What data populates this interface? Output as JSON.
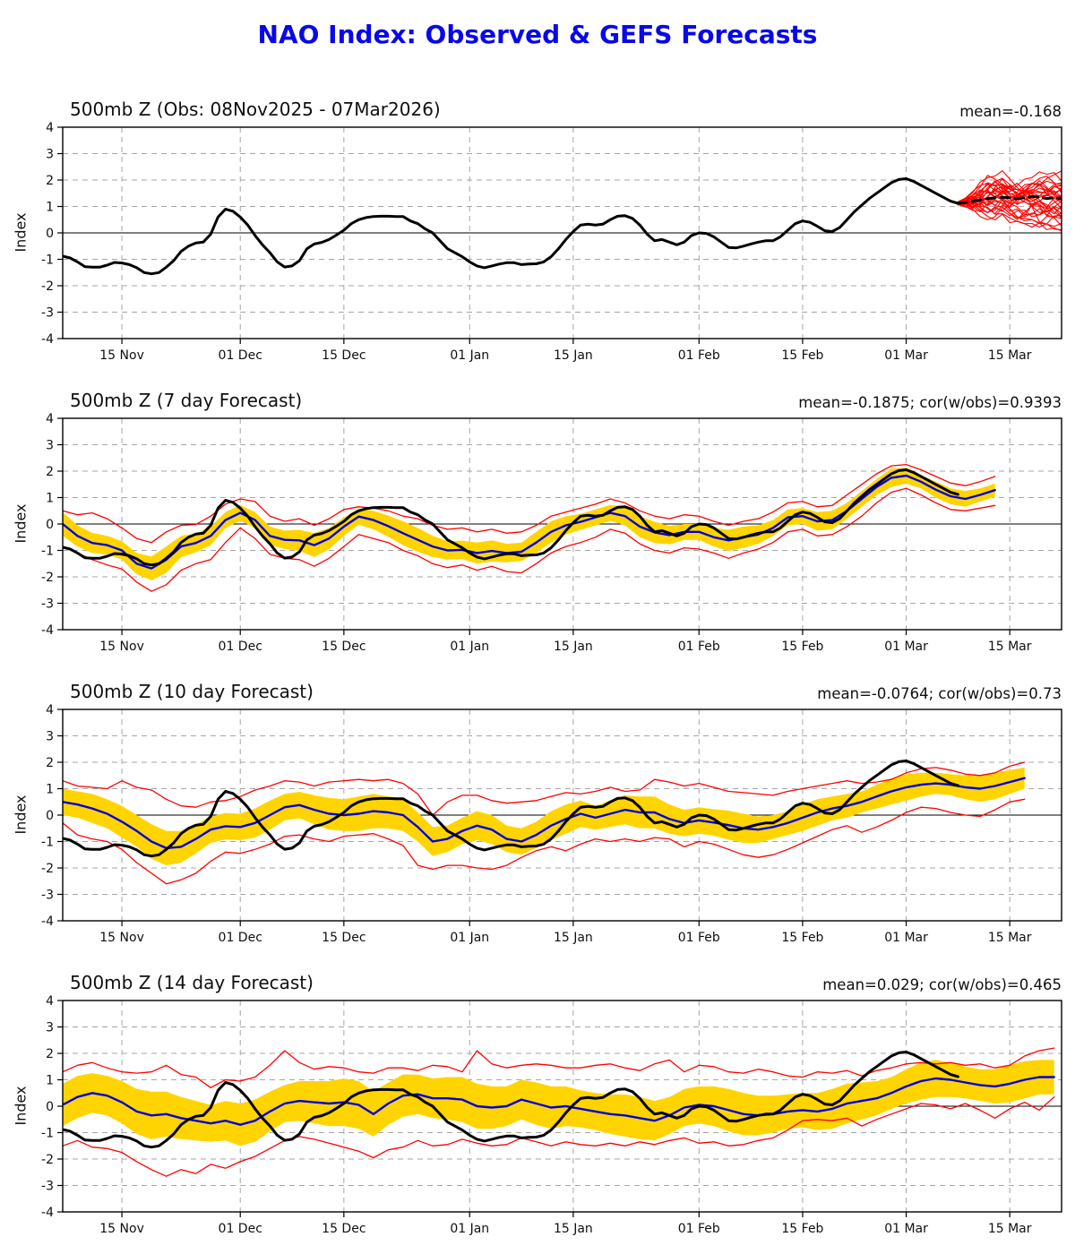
{
  "title": "NAO Index: Observed & GEFS Forecasts",
  "colors": {
    "title": "#0808e8",
    "observed": "#000000",
    "mean_line": "#0000dd",
    "envelope": "#ff0000",
    "band": "#ffd400",
    "grid": "#a6a6a6"
  },
  "axis": {
    "y_label": "Index",
    "y_min": -4,
    "y_max": 4,
    "y_ticks": [
      -4,
      -3,
      -2,
      -1,
      0,
      1,
      2,
      3,
      4
    ],
    "day_min": 0,
    "day_max": 135,
    "x_ticks": [
      {
        "day": 8,
        "label": "15 Nov"
      },
      {
        "day": 24,
        "label": "01 Dec"
      },
      {
        "day": 38,
        "label": "15 Dec"
      },
      {
        "day": 55,
        "label": "01 Jan"
      },
      {
        "day": 69,
        "label": "15 Jan"
      },
      {
        "day": 86,
        "label": "01 Feb"
      },
      {
        "day": 100,
        "label": "15 Feb"
      },
      {
        "day": 114,
        "label": "01 Mar"
      },
      {
        "day": 128,
        "label": "15 Mar"
      }
    ]
  },
  "chart_data": [
    {
      "type": "line",
      "title": "500mb Z (Obs: 08Nov2025 - 07Mar2026)",
      "stats": "mean=-0.168",
      "mean_value": -0.168,
      "observed": {
        "x_start": 0,
        "x_step": 1,
        "values": [
          -0.88,
          -0.95,
          -1.1,
          -1.28,
          -1.3,
          -1.3,
          -1.22,
          -1.12,
          -1.14,
          -1.2,
          -1.32,
          -1.5,
          -1.55,
          -1.5,
          -1.3,
          -1.05,
          -0.7,
          -0.5,
          -0.38,
          -0.35,
          -0.05,
          0.6,
          0.9,
          0.82,
          0.6,
          0.3,
          -0.1,
          -0.45,
          -0.75,
          -1.1,
          -1.29,
          -1.25,
          -1.05,
          -0.6,
          -0.42,
          -0.36,
          -0.25,
          -0.08,
          0.1,
          0.35,
          0.5,
          0.58,
          0.62,
          0.63,
          0.63,
          0.62,
          0.62,
          0.45,
          0.35,
          0.15,
          0,
          -0.3,
          -0.6,
          -0.75,
          -0.9,
          -1.1,
          -1.25,
          -1.32,
          -1.25,
          -1.18,
          -1.13,
          -1.13,
          -1.2,
          -1.18,
          -1.17,
          -1.1,
          -0.9,
          -0.6,
          -0.25,
          0.05,
          0.3,
          0.33,
          0.3,
          0.33,
          0.5,
          0.63,
          0.65,
          0.55,
          0.3,
          -0.05,
          -0.3,
          -0.25,
          -0.35,
          -0.45,
          -0.35,
          -0.1,
          0,
          -0.02,
          -0.15,
          -0.35,
          -0.55,
          -0.57,
          -0.5,
          -0.42,
          -0.35,
          -0.3,
          -0.3,
          -0.15,
          0.1,
          0.35,
          0.45,
          0.4,
          0.25,
          0.08,
          0.05,
          0.2,
          0.5,
          0.8,
          1.05,
          1.3,
          1.5,
          1.7,
          1.9,
          2.02,
          2.05,
          1.95,
          1.8,
          1.65,
          1.5,
          1.35,
          1.2,
          1.12
        ]
      },
      "forecast_mean_dashed": {
        "x_start": 121,
        "x_step": 1,
        "values": [
          1.12,
          1.15,
          1.2,
          1.25,
          1.3,
          1.33,
          1.35,
          1.33,
          1.3,
          1.33,
          1.38,
          1.35,
          1.3,
          1.33,
          1.3
        ]
      },
      "ensemble_members": 30
    },
    {
      "type": "line",
      "title": "500mb Z (7 day Forecast)",
      "stats": "mean=-0.1875; cor(w/obs)=0.9393",
      "mean_value": -0.1875,
      "correlation": 0.9393,
      "x_start": 0,
      "x_step": 2,
      "ensemble_mean": [
        0.0,
        -0.45,
        -0.72,
        -0.8,
        -1.0,
        -1.5,
        -1.68,
        -1.35,
        -0.85,
        -0.72,
        -0.45,
        0.15,
        0.42,
        0.15,
        -0.45,
        -0.6,
        -0.62,
        -0.8,
        -0.55,
        -0.1,
        0.28,
        0.15,
        -0.08,
        -0.35,
        -0.6,
        -0.85,
        -1.0,
        -0.98,
        -1.1,
        -1.02,
        -1.1,
        -1.05,
        -0.7,
        -0.3,
        -0.05,
        0.08,
        0.25,
        0.42,
        0.3,
        -0.1,
        -0.32,
        -0.42,
        -0.3,
        -0.3,
        -0.5,
        -0.62,
        -0.5,
        -0.4,
        -0.15,
        0.25,
        0.3,
        0.1,
        0.15,
        0.5,
        0.95,
        1.4,
        1.75,
        1.83,
        1.6,
        1.3,
        1.05,
        0.95,
        1.1,
        1.28
      ],
      "band_halfwidth": [
        0.45,
        0.4,
        0.38,
        0.35,
        0.35,
        0.4,
        0.45,
        0.5,
        0.4,
        0.35,
        0.35,
        0.3,
        0.3,
        0.3,
        0.35,
        0.35,
        0.4,
        0.45,
        0.4,
        0.35,
        0.3,
        0.35,
        0.4,
        0.45,
        0.45,
        0.4,
        0.35,
        0.35,
        0.4,
        0.4,
        0.35,
        0.35,
        0.4,
        0.4,
        0.35,
        0.3,
        0.3,
        0.3,
        0.35,
        0.4,
        0.4,
        0.35,
        0.3,
        0.3,
        0.35,
        0.4,
        0.4,
        0.35,
        0.3,
        0.3,
        0.3,
        0.35,
        0.35,
        0.3,
        0.3,
        0.3,
        0.35,
        0.3,
        0.25,
        0.3,
        0.3,
        0.3,
        0.25,
        0.25
      ],
      "envelope_max": [
        0.5,
        0.35,
        0.42,
        0.2,
        -0.15,
        -0.55,
        -0.7,
        -0.3,
        -0.05,
        -0.02,
        0.3,
        0.75,
        0.95,
        0.85,
        0.3,
        0.1,
        0.2,
        -0.05,
        0.2,
        0.55,
        0.65,
        0.6,
        0.5,
        0.3,
        0.2,
        -0.05,
        -0.2,
        -0.15,
        -0.3,
        -0.2,
        -0.35,
        -0.3,
        -0.05,
        0.3,
        0.45,
        0.6,
        0.75,
        0.95,
        0.8,
        0.5,
        0.3,
        0.2,
        0.35,
        0.3,
        0.1,
        -0.05,
        0.1,
        0.2,
        0.45,
        0.8,
        0.85,
        0.65,
        0.7,
        1.1,
        1.5,
        1.9,
        2.2,
        2.25,
        2.05,
        1.8,
        1.55,
        1.45,
        1.6,
        1.8
      ],
      "envelope_min": [
        -0.85,
        -1.1,
        -1.35,
        -1.55,
        -1.7,
        -2.2,
        -2.55,
        -2.3,
        -1.75,
        -1.5,
        -1.35,
        -0.7,
        -0.15,
        -0.55,
        -1.15,
        -1.3,
        -1.35,
        -1.6,
        -1.3,
        -0.85,
        -0.4,
        -0.55,
        -0.7,
        -1.0,
        -1.2,
        -1.5,
        -1.65,
        -1.55,
        -1.75,
        -1.6,
        -1.8,
        -1.85,
        -1.5,
        -1.1,
        -0.85,
        -0.7,
        -0.5,
        -0.2,
        -0.35,
        -0.75,
        -1.0,
        -1.1,
        -0.9,
        -0.95,
        -1.1,
        -1.3,
        -1.1,
        -0.95,
        -0.7,
        -0.3,
        -0.2,
        -0.45,
        -0.4,
        -0.1,
        0.3,
        0.8,
        1.2,
        1.35,
        1.1,
        0.8,
        0.55,
        0.5,
        0.6,
        0.7
      ]
    },
    {
      "type": "line",
      "title": "500mb Z (10 day Forecast)",
      "stats": "mean=-0.0764; cor(w/obs)=0.73",
      "mean_value": -0.0764,
      "correlation": 0.73,
      "x_start": 0,
      "x_step": 2,
      "ensemble_mean": [
        0.5,
        0.4,
        0.25,
        0.05,
        -0.25,
        -0.6,
        -1.0,
        -1.25,
        -1.2,
        -0.9,
        -0.55,
        -0.42,
        -0.45,
        -0.3,
        0.0,
        0.3,
        0.38,
        0.2,
        0.05,
        0.0,
        0.05,
        0.15,
        0.1,
        0.0,
        -0.45,
        -1.0,
        -0.9,
        -0.6,
        -0.4,
        -0.55,
        -0.9,
        -1.0,
        -0.75,
        -0.4,
        -0.15,
        0.05,
        -0.1,
        0.05,
        0.2,
        0.1,
        0.1,
        -0.15,
        -0.3,
        -0.2,
        -0.28,
        -0.38,
        -0.5,
        -0.55,
        -0.45,
        -0.3,
        -0.1,
        0.1,
        0.25,
        0.35,
        0.5,
        0.7,
        0.9,
        1.05,
        1.15,
        1.2,
        1.15,
        1.05,
        1.0,
        1.1,
        1.25,
        1.4
      ],
      "band_halfwidth": [
        0.5,
        0.5,
        0.55,
        0.55,
        0.6,
        0.6,
        0.65,
        0.65,
        0.6,
        0.55,
        0.5,
        0.5,
        0.5,
        0.55,
        0.55,
        0.5,
        0.5,
        0.55,
        0.6,
        0.6,
        0.65,
        0.65,
        0.6,
        0.6,
        0.55,
        0.55,
        0.5,
        0.5,
        0.55,
        0.55,
        0.5,
        0.5,
        0.5,
        0.55,
        0.55,
        0.5,
        0.45,
        0.5,
        0.55,
        0.6,
        0.6,
        0.55,
        0.5,
        0.5,
        0.5,
        0.55,
        0.55,
        0.5,
        0.45,
        0.45,
        0.5,
        0.5,
        0.45,
        0.45,
        0.4,
        0.45,
        0.5,
        0.5,
        0.45,
        0.4,
        0.4,
        0.45,
        0.5,
        0.5,
        0.45,
        0.4
      ],
      "envelope_max": [
        1.3,
        1.1,
        1.05,
        1.0,
        1.3,
        1.05,
        0.95,
        0.6,
        0.35,
        0.3,
        0.5,
        0.55,
        0.7,
        0.95,
        1.1,
        1.3,
        1.25,
        1.1,
        1.25,
        1.3,
        1.35,
        1.3,
        1.35,
        1.2,
        0.8,
        0.0,
        0.5,
        0.75,
        0.75,
        0.55,
        0.45,
        0.5,
        0.55,
        0.7,
        0.85,
        0.8,
        0.9,
        1.05,
        0.9,
        0.95,
        1.35,
        1.25,
        1.1,
        1.2,
        1.05,
        0.9,
        0.85,
        0.8,
        0.75,
        0.9,
        1.0,
        1.1,
        1.2,
        1.3,
        1.2,
        1.25,
        1.35,
        1.6,
        1.75,
        1.8,
        1.7,
        1.55,
        1.5,
        1.6,
        1.85,
        2.0
      ],
      "envelope_min": [
        -0.3,
        -0.75,
        -0.9,
        -1.0,
        -1.3,
        -1.8,
        -2.2,
        -2.6,
        -2.45,
        -2.2,
        -1.75,
        -1.4,
        -1.45,
        -1.3,
        -1.1,
        -0.8,
        -0.75,
        -0.9,
        -1.0,
        -0.8,
        -0.75,
        -0.7,
        -0.9,
        -1.15,
        -1.9,
        -2.05,
        -1.9,
        -1.9,
        -2.0,
        -2.05,
        -1.9,
        -1.6,
        -1.35,
        -1.2,
        -1.35,
        -1.1,
        -0.9,
        -1.0,
        -0.9,
        -1.0,
        -0.85,
        -0.9,
        -1.2,
        -1.0,
        -1.1,
        -1.3,
        -1.5,
        -1.6,
        -1.5,
        -1.3,
        -1.05,
        -0.8,
        -0.55,
        -0.4,
        -0.65,
        -0.45,
        -0.2,
        0.1,
        0.3,
        0.25,
        0.1,
        0.0,
        -0.05,
        0.2,
        0.5,
        0.6
      ]
    },
    {
      "type": "line",
      "title": "500mb Z (14 day Forecast)",
      "stats": "mean=0.029; cor(w/obs)=0.465",
      "mean_value": 0.029,
      "correlation": 0.465,
      "x_start": 0,
      "x_step": 2,
      "ensemble_mean": [
        0.05,
        0.35,
        0.5,
        0.4,
        0.15,
        -0.2,
        -0.35,
        -0.3,
        -0.45,
        -0.55,
        -0.65,
        -0.55,
        -0.7,
        -0.55,
        -0.2,
        0.1,
        0.2,
        0.15,
        0.1,
        0.15,
        0.05,
        -0.3,
        0.1,
        0.4,
        0.45,
        0.3,
        0.3,
        0.25,
        0.0,
        -0.05,
        0.0,
        0.25,
        0.1,
        -0.05,
        0.0,
        -0.1,
        -0.2,
        -0.3,
        -0.35,
        -0.45,
        -0.55,
        -0.35,
        -0.05,
        0.05,
        0.0,
        -0.15,
        -0.3,
        -0.35,
        -0.3,
        -0.2,
        -0.15,
        -0.2,
        -0.1,
        0.1,
        0.2,
        0.3,
        0.5,
        0.75,
        0.95,
        1.05,
        1.0,
        0.9,
        0.8,
        0.75,
        0.85,
        1.0,
        1.1,
        1.1
      ],
      "band_halfwidth": [
        0.8,
        0.8,
        0.75,
        0.75,
        0.8,
        0.85,
        0.9,
        0.85,
        0.8,
        0.75,
        0.7,
        0.75,
        0.8,
        0.8,
        0.75,
        0.7,
        0.75,
        0.8,
        0.85,
        0.9,
        0.9,
        0.85,
        0.8,
        0.8,
        0.75,
        0.75,
        0.8,
        0.85,
        0.85,
        0.8,
        0.75,
        0.75,
        0.8,
        0.8,
        0.75,
        0.7,
        0.7,
        0.75,
        0.8,
        0.8,
        0.75,
        0.7,
        0.7,
        0.7,
        0.75,
        0.8,
        0.8,
        0.75,
        0.7,
        0.65,
        0.65,
        0.7,
        0.75,
        0.75,
        0.7,
        0.65,
        0.6,
        0.65,
        0.7,
        0.7,
        0.65,
        0.6,
        0.6,
        0.65,
        0.7,
        0.7,
        0.65,
        0.65
      ],
      "envelope_max": [
        1.3,
        1.55,
        1.65,
        1.45,
        1.3,
        1.25,
        1.3,
        1.55,
        1.2,
        1.1,
        0.7,
        1.0,
        0.95,
        1.1,
        1.55,
        2.1,
        1.65,
        1.4,
        1.5,
        1.45,
        1.3,
        1.25,
        1.45,
        1.45,
        1.35,
        1.55,
        1.5,
        1.3,
        2.1,
        1.6,
        1.45,
        1.55,
        1.6,
        1.55,
        1.45,
        1.45,
        1.55,
        1.6,
        1.45,
        1.35,
        1.6,
        1.75,
        1.3,
        1.55,
        1.5,
        1.3,
        1.25,
        1.4,
        1.3,
        1.15,
        1.1,
        1.3,
        1.25,
        1.35,
        1.15,
        1.35,
        1.45,
        1.6,
        1.65,
        1.6,
        1.65,
        1.55,
        1.6,
        1.45,
        1.55,
        1.9,
        2.1,
        2.2
      ],
      "envelope_min": [
        -1.5,
        -1.3,
        -1.55,
        -1.6,
        -1.75,
        -2.1,
        -2.4,
        -2.65,
        -2.4,
        -2.55,
        -2.2,
        -2.35,
        -2.1,
        -1.9,
        -1.6,
        -1.3,
        -1.15,
        -1.25,
        -1.4,
        -1.55,
        -1.7,
        -1.95,
        -1.65,
        -1.55,
        -1.3,
        -1.5,
        -1.45,
        -1.25,
        -1.4,
        -1.5,
        -1.45,
        -1.2,
        -1.35,
        -1.5,
        -1.35,
        -1.45,
        -1.5,
        -1.4,
        -1.5,
        -1.35,
        -1.45,
        -1.3,
        -1.2,
        -1.4,
        -1.35,
        -1.5,
        -1.45,
        -1.3,
        -1.2,
        -0.9,
        -0.55,
        -0.5,
        -0.55,
        -0.45,
        -0.75,
        -0.5,
        -0.3,
        -0.1,
        0.1,
        0.05,
        -0.1,
        0.1,
        -0.15,
        -0.45,
        -0.1,
        0.15,
        -0.15,
        0.35
      ]
    }
  ]
}
